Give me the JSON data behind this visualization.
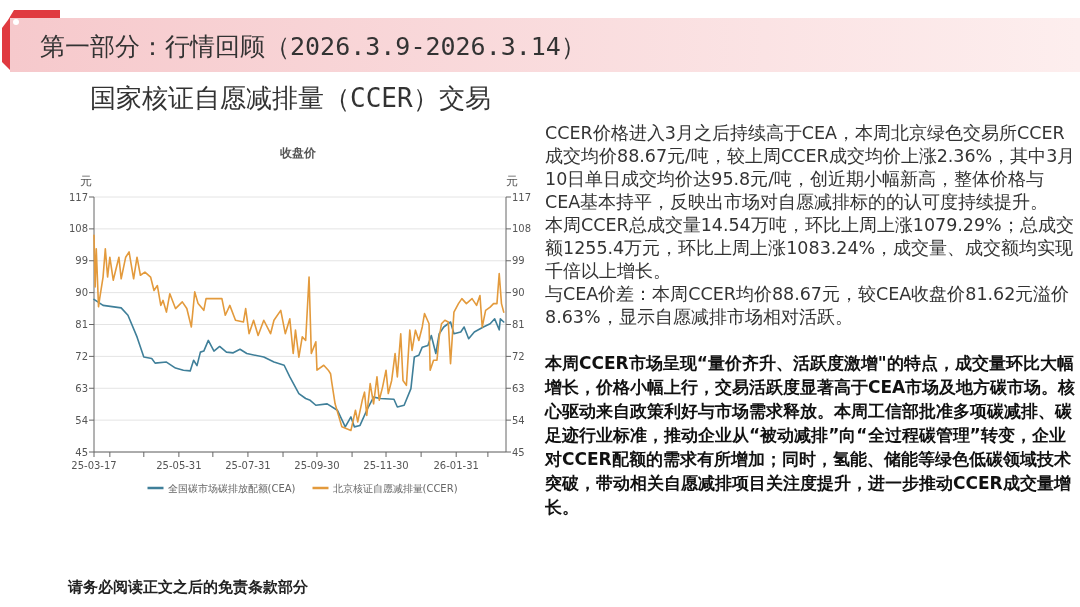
{
  "chart_data": {
    "type": "line",
    "title": "收盘价",
    "ylabel": "元",
    "y2label": "元",
    "annotations": [
      "第一部分：行情回顾（2026.3.9-2026.3.14）",
      "国家核证自愿减排量（CCER）交易",
      "CCER价格进入3月之后持续高于CEA，本周北京绿色交易所CCER成交均价88.67元/吨，较上周CCER成交均价上涨2.36%，其中3月10日单日成交均价达95.8元/吨，创近期小幅新高，整体价格与CEA基本持平，反映出市场对自愿减排标的的认可度持续提升。",
      "本周CCER总成交量14.54万吨，环比上周上涨1079.29%；总成交额1255.4万元，环比上周上涨1083.24%，成交量、成交额均实现千倍以上增长。",
      "与CEA价差：本周CCER均价88.67元，较CEA收盘价81.62元溢价8.63%，显示自愿减排市场相对活跃。",
      "本周CCER市场呈现“量价齐升、活跃度激增\"的特点，成交量环比大幅增长，价格小幅上行，交易活跃度显著高于CEA市场及地方碳市场。核心驱动来自政策利好与市场需求释放。本周工信部批准多项碳减排、碳足迹行业标准，推动企业从“被动减排”向“全过程碳管理”转变，企业对CCER配额的需求有所增加；同时，氢能、储能等绿色低碳领域技术突破，带动相关自愿减排项目关注度提升，进一步推动CCER成交量增长。",
      "请务必阅读正文之后的免责条款部分"
    ],
    "xlim": [
      "2025-03-17",
      "2026-03-16"
    ],
    "xticks": [
      {
        "value": "2025-03-17",
        "label": "25-03-17"
      },
      {
        "value": "2025-03-31",
        "label": null
      },
      {
        "value": "2025-04-30",
        "label": null
      },
      {
        "value": "2025-05-31",
        "label": "25-05-31"
      },
      {
        "value": "2025-06-30",
        "label": null
      },
      {
        "value": "2025-07-31",
        "label": "25-07-31"
      },
      {
        "value": "2025-08-31",
        "label": null
      },
      {
        "value": "2025-09-30",
        "label": "25-09-30"
      },
      {
        "value": "2025-10-31",
        "label": null
      },
      {
        "value": "2025-11-30",
        "label": "25-11-30"
      },
      {
        "value": "2025-12-31",
        "label": null
      },
      {
        "value": "2026-01-31",
        "label": "26-01-31"
      },
      {
        "value": "2026-02-28",
        "label": null
      }
    ],
    "ylim": [
      45,
      117
    ],
    "yticks": [
      45,
      54,
      63,
      72,
      81,
      90,
      99,
      108,
      117
    ],
    "y2lim": [
      45,
      117
    ],
    "y2ticks": [
      45,
      54,
      63,
      72,
      81,
      90,
      99,
      108,
      117
    ],
    "grid": "y",
    "legend": "bottom",
    "line_style": "solid",
    "marker": "none",
    "series": [
      {
        "name": "全国碳市场碳排放配额(CEA)",
        "color": "#3f7f99",
        "x": [
          "2025-03-17",
          "2025-03-25",
          "2025-04-10",
          "2025-04-16",
          "2025-04-24",
          "2025-04-30",
          "2025-05-07",
          "2025-05-10",
          "2025-05-20",
          "2025-05-28",
          "2025-06-04",
          "2025-06-10",
          "2025-06-13",
          "2025-06-16",
          "2025-06-19",
          "2025-06-22",
          "2025-06-26",
          "2025-07-01",
          "2025-07-06",
          "2025-07-12",
          "2025-07-18",
          "2025-07-24",
          "2025-07-30",
          "2025-08-14",
          "2025-08-23",
          "2025-09-01",
          "2025-09-06",
          "2025-09-14",
          "2025-09-20",
          "2025-09-24",
          "2025-09-29",
          "2025-10-09",
          "2025-10-18",
          "2025-10-25",
          "2025-10-30",
          "2025-11-02",
          "2025-11-07",
          "2025-11-13",
          "2025-11-19",
          "2025-11-25",
          "2025-12-07",
          "2025-12-10",
          "2025-12-16",
          "2025-12-22",
          "2025-12-25",
          "2025-12-29",
          "2026-01-01",
          "2026-01-06",
          "2026-01-09",
          "2026-01-13",
          "2026-01-16",
          "2026-01-20",
          "2026-01-26",
          "2026-01-29",
          "2026-02-04",
          "2026-02-07",
          "2026-02-11",
          "2026-02-16",
          "2026-02-24",
          "2026-03-02",
          "2026-03-06",
          "2026-03-10",
          "2026-03-11",
          "2026-03-14"
        ],
        "values": [
          88.1,
          86.4,
          85.7,
          83.6,
          77.5,
          71.8,
          71.4,
          70.1,
          70.4,
          68.7,
          68.1,
          67.9,
          70.9,
          69.4,
          73.2,
          73.5,
          76.5,
          73.5,
          74.8,
          73.2,
          73,
          74,
          72.8,
          71.8,
          70.4,
          69.5,
          66.2,
          61.5,
          60.1,
          59.6,
          58.2,
          58.6,
          56.8,
          52.1,
          54.9,
          52.1,
          52.5,
          56.8,
          60.5,
          60.1,
          59.9,
          57.7,
          58.2,
          62.9,
          71.8,
          72.3,
          74.6,
          75.1,
          77.9,
          72.8,
          78.4,
          80.3,
          81.7,
          78.4,
          78.9,
          80.3,
          77,
          78.9,
          80.3,
          81.2,
          82.6,
          79.5,
          82.6,
          81.7
        ]
      },
      {
        "name": "北京核证自愿减排量(CCER)",
        "color": "#e39a3c",
        "x": [
          "2025-03-17",
          "2025-03-18",
          "2025-03-19",
          "2025-03-21",
          "2025-03-22",
          "2025-03-25",
          "2025-03-27",
          "2025-03-29",
          "2025-03-31",
          "2025-04-03",
          "2025-04-08",
          "2025-04-10",
          "2025-04-14",
          "2025-04-17",
          "2025-04-21",
          "2025-04-24",
          "2025-04-27",
          "2025-05-01",
          "2025-05-06",
          "2025-05-09",
          "2025-05-12",
          "2025-05-15",
          "2025-05-17",
          "2025-05-20",
          "2025-05-23",
          "2025-05-28",
          "2025-06-03",
          "2025-06-07",
          "2025-06-11",
          "2025-06-14",
          "2025-06-17",
          "2025-06-22",
          "2025-06-24",
          "2025-07-01",
          "2025-07-08",
          "2025-07-11",
          "2025-07-15",
          "2025-07-20",
          "2025-07-27",
          "2025-07-29",
          "2025-08-01",
          "2025-08-05",
          "2025-08-09",
          "2025-08-14",
          "2025-08-20",
          "2025-08-23",
          "2025-08-29",
          "2025-09-02",
          "2025-09-06",
          "2025-09-09",
          "2025-09-11",
          "2025-09-14",
          "2025-09-17",
          "2025-09-20",
          "2025-09-23",
          "2025-09-25",
          "2025-09-29",
          "2025-09-30",
          "2025-10-06",
          "2025-10-10",
          "2025-10-12",
          "2025-10-13",
          "2025-10-16",
          "2025-10-22",
          "2025-10-30",
          "2025-11-03",
          "2025-11-05",
          "2025-11-09",
          "2025-11-11",
          "2025-11-13",
          "2025-11-16",
          "2025-11-19",
          "2025-11-22",
          "2025-11-24",
          "2025-11-27",
          "2025-11-30",
          "2025-12-02",
          "2025-12-05",
          "2025-12-08",
          "2025-12-10",
          "2025-12-13",
          "2025-12-15",
          "2025-12-18",
          "2025-12-21",
          "2025-12-23",
          "2025-12-26",
          "2025-12-29",
          "2026-01-01",
          "2026-01-03",
          "2026-01-07",
          "2026-01-08",
          "2026-01-11",
          "2026-01-14",
          "2026-01-16",
          "2026-01-18",
          "2026-01-21",
          "2026-01-24",
          "2026-01-26",
          "2026-01-29",
          "2026-02-02",
          "2026-02-05",
          "2026-02-09",
          "2026-02-14",
          "2026-02-18",
          "2026-02-21",
          "2026-02-23",
          "2026-02-26",
          "2026-03-02",
          "2026-03-05",
          "2026-03-08",
          "2026-03-10",
          "2026-03-12",
          "2026-03-14"
        ],
        "values": [
          106.2,
          91.6,
          102.4,
          86,
          88.3,
          94.4,
          102.4,
          94.4,
          100,
          93.5,
          100,
          93.9,
          100,
          101.5,
          93.9,
          100,
          94.9,
          95.8,
          94.4,
          90.6,
          92,
          86.4,
          87.8,
          84.5,
          89.7,
          85.5,
          87.4,
          85.5,
          80.3,
          90.2,
          86.9,
          85,
          88.3,
          88.3,
          88.3,
          83.6,
          86.4,
          82.2,
          81.7,
          85.5,
          78.4,
          82.2,
          77.9,
          82.2,
          78.4,
          82.2,
          85,
          78.4,
          82.6,
          72.8,
          79.4,
          71.8,
          77.5,
          76.5,
          94.4,
          72.8,
          76.1,
          68.1,
          69.5,
          68.1,
          67.1,
          64.8,
          58.6,
          52.1,
          51.1,
          56.8,
          53.5,
          59.6,
          61.9,
          55.3,
          64.3,
          58.6,
          66.2,
          59.6,
          63.4,
          68.1,
          61.5,
          65.2,
          72.8,
          66.2,
          78.4,
          65.2,
          63.8,
          79.4,
          73.7,
          79.4,
          76.5,
          80.3,
          84.1,
          81.2,
          68.1,
          70.9,
          70.9,
          77.5,
          81.2,
          82.2,
          81.7,
          69.9,
          84.5,
          86.9,
          88.3,
          86.9,
          88.3,
          86.4,
          89.2,
          80.3,
          85,
          85.9,
          86.9,
          86.9,
          95.4,
          86.9,
          84.5
        ]
      }
    ]
  }
}
